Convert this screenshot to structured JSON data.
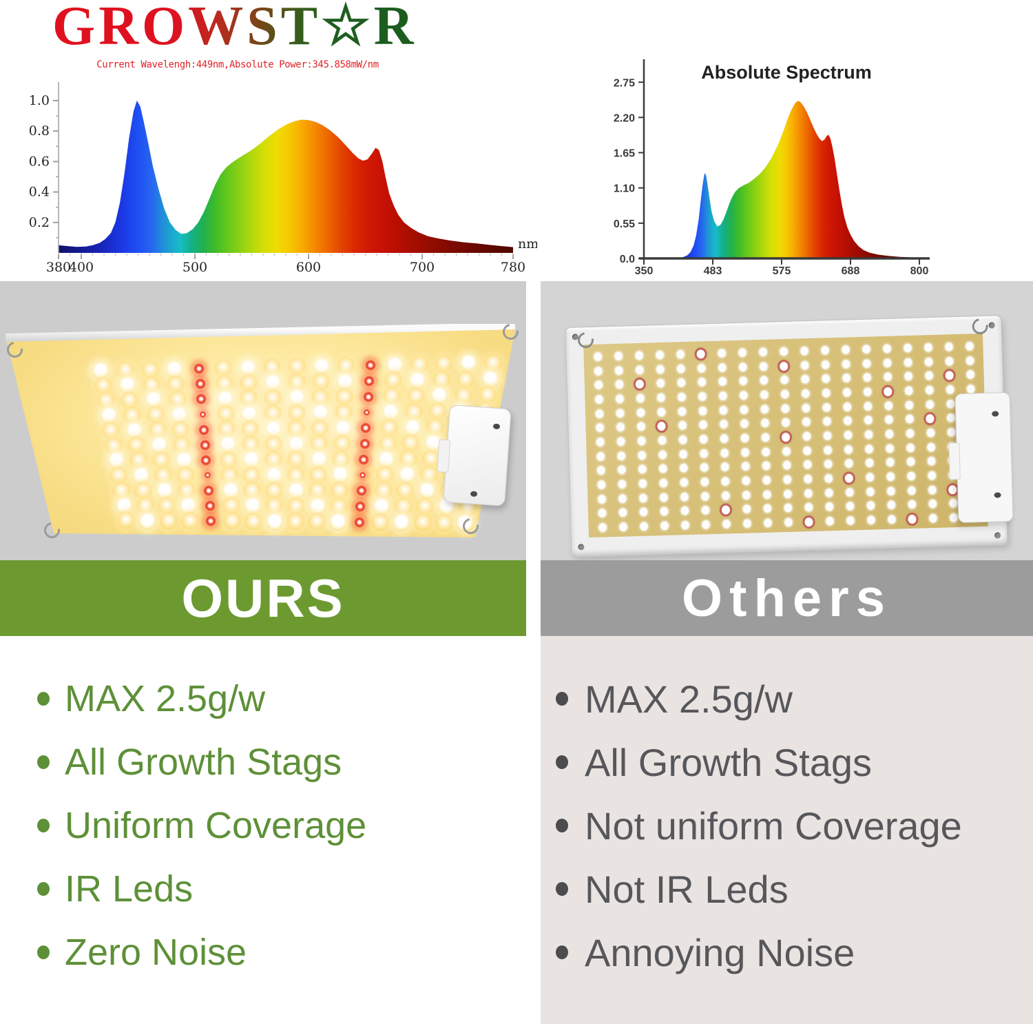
{
  "logo": {
    "text": "GROWST☆R"
  },
  "colors": {
    "logo_red": "#e2101e",
    "logo_green": "#1b5c1f",
    "chart_title_red": "#e12328",
    "banner_green": "#6d9a30",
    "banner_gray": "#9c9c9c",
    "ours_list_green": "#5e9038",
    "others_list_gray": "#57575b",
    "others_list_bg": "#e9e4e2",
    "photo_bg_left": "#cccccc",
    "photo_bg_right": "#d4d4d4"
  },
  "chart_data": [
    {
      "type": "area",
      "title": "Current Wavelengh:449nm,Absolute Power:345.858mW/nm",
      "x_unit": "nm",
      "x_scale": "linear",
      "xlim": [
        380,
        780
      ],
      "ylim": [
        0,
        1.08
      ],
      "x_ticks": [
        {
          "nm": 380,
          "label": "380"
        },
        {
          "nm": 400,
          "label": "400"
        },
        {
          "nm": 500,
          "label": "500"
        },
        {
          "nm": 600,
          "label": "600"
        },
        {
          "nm": 700,
          "label": "700"
        },
        {
          "nm": 780,
          "label": "780"
        }
      ],
      "y_ticks": [
        {
          "v": 0.2,
          "label": "0.2"
        },
        {
          "v": 0.4,
          "label": "0.4"
        },
        {
          "v": 0.6,
          "label": "0.6"
        },
        {
          "v": 0.8,
          "label": "0.8"
        },
        {
          "v": 1.0,
          "label": "1.0"
        }
      ],
      "points": [
        [
          380,
          0.05
        ],
        [
          388,
          0.045
        ],
        [
          396,
          0.04
        ],
        [
          404,
          0.042
        ],
        [
          410,
          0.05
        ],
        [
          416,
          0.065
        ],
        [
          421,
          0.09
        ],
        [
          426,
          0.13
        ],
        [
          430,
          0.2
        ],
        [
          434,
          0.33
        ],
        [
          438,
          0.52
        ],
        [
          442,
          0.75
        ],
        [
          446,
          0.93
        ],
        [
          449,
          1.0
        ],
        [
          452,
          0.96
        ],
        [
          455,
          0.86
        ],
        [
          459,
          0.72
        ],
        [
          463,
          0.57
        ],
        [
          468,
          0.42
        ],
        [
          473,
          0.29
        ],
        [
          478,
          0.2
        ],
        [
          483,
          0.15
        ],
        [
          488,
          0.125
        ],
        [
          493,
          0.13
        ],
        [
          498,
          0.155
        ],
        [
          503,
          0.2
        ],
        [
          508,
          0.27
        ],
        [
          513,
          0.36
        ],
        [
          518,
          0.45
        ],
        [
          523,
          0.52
        ],
        [
          528,
          0.565
        ],
        [
          534,
          0.6
        ],
        [
          541,
          0.635
        ],
        [
          549,
          0.67
        ],
        [
          557,
          0.715
        ],
        [
          565,
          0.765
        ],
        [
          573,
          0.81
        ],
        [
          581,
          0.845
        ],
        [
          588,
          0.865
        ],
        [
          594,
          0.875
        ],
        [
          600,
          0.872
        ],
        [
          606,
          0.86
        ],
        [
          612,
          0.84
        ],
        [
          619,
          0.805
        ],
        [
          626,
          0.76
        ],
        [
          633,
          0.705
        ],
        [
          639,
          0.655
        ],
        [
          644,
          0.62
        ],
        [
          648,
          0.605
        ],
        [
          652,
          0.615
        ],
        [
          656,
          0.655
        ],
        [
          659,
          0.69
        ],
        [
          662,
          0.675
        ],
        [
          665,
          0.6
        ],
        [
          668,
          0.49
        ],
        [
          671,
          0.39
        ],
        [
          675,
          0.31
        ],
        [
          679,
          0.25
        ],
        [
          684,
          0.2
        ],
        [
          690,
          0.165
        ],
        [
          697,
          0.135
        ],
        [
          705,
          0.11
        ],
        [
          714,
          0.095
        ],
        [
          724,
          0.082
        ],
        [
          736,
          0.07
        ],
        [
          748,
          0.062
        ],
        [
          760,
          0.052
        ],
        [
          770,
          0.045
        ],
        [
          780,
          0.038
        ]
      ]
    },
    {
      "type": "area",
      "title": "Absolute Spectrum",
      "x_scale": "even-ticks",
      "xlim": [
        350,
        800
      ],
      "ylim": [
        0,
        2.75
      ],
      "x_ticks": [
        {
          "nm": 350,
          "label": "350"
        },
        {
          "nm": 483,
          "label": "483"
        },
        {
          "nm": 575,
          "label": "575"
        },
        {
          "nm": 688,
          "label": "688"
        },
        {
          "nm": 800,
          "label": "800"
        }
      ],
      "y_ticks": [
        {
          "v": 0.0,
          "label": "0.0"
        },
        {
          "v": 0.55,
          "label": "0.55"
        },
        {
          "v": 1.1,
          "label": "1.10"
        },
        {
          "v": 1.65,
          "label": "1.65"
        },
        {
          "v": 2.2,
          "label": "2.20"
        },
        {
          "v": 2.75,
          "label": "2.75"
        }
      ],
      "points": [
        [
          350,
          0.005
        ],
        [
          415,
          0.01
        ],
        [
          426,
          0.02
        ],
        [
          434,
          0.05
        ],
        [
          440,
          0.1
        ],
        [
          446,
          0.2
        ],
        [
          451,
          0.36
        ],
        [
          456,
          0.62
        ],
        [
          460,
          0.92
        ],
        [
          464,
          1.18
        ],
        [
          467,
          1.33
        ],
        [
          470,
          1.3
        ],
        [
          473,
          1.15
        ],
        [
          477,
          0.92
        ],
        [
          481,
          0.72
        ],
        [
          485,
          0.58
        ],
        [
          489,
          0.5
        ],
        [
          493,
          0.52
        ],
        [
          497,
          0.6
        ],
        [
          501,
          0.72
        ],
        [
          505,
          0.85
        ],
        [
          509,
          0.96
        ],
        [
          513,
          1.04
        ],
        [
          518,
          1.1
        ],
        [
          524,
          1.14
        ],
        [
          531,
          1.18
        ],
        [
          538,
          1.24
        ],
        [
          546,
          1.32
        ],
        [
          554,
          1.43
        ],
        [
          562,
          1.58
        ],
        [
          570,
          1.77
        ],
        [
          578,
          1.99
        ],
        [
          585,
          2.18
        ],
        [
          591,
          2.32
        ],
        [
          597,
          2.42
        ],
        [
          602,
          2.46
        ],
        [
          607,
          2.43
        ],
        [
          612,
          2.36
        ],
        [
          617,
          2.27
        ],
        [
          622,
          2.16
        ],
        [
          627,
          2.05
        ],
        [
          632,
          1.95
        ],
        [
          637,
          1.87
        ],
        [
          641,
          1.83
        ],
        [
          645,
          1.85
        ],
        [
          649,
          1.91
        ],
        [
          652,
          1.93
        ],
        [
          655,
          1.87
        ],
        [
          658,
          1.75
        ],
        [
          662,
          1.55
        ],
        [
          666,
          1.3
        ],
        [
          670,
          1.05
        ],
        [
          674,
          0.83
        ],
        [
          678,
          0.64
        ],
        [
          683,
          0.48
        ],
        [
          688,
          0.37
        ],
        [
          694,
          0.27
        ],
        [
          701,
          0.19
        ],
        [
          709,
          0.13
        ],
        [
          719,
          0.09
        ],
        [
          732,
          0.06
        ],
        [
          748,
          0.04
        ],
        [
          768,
          0.025
        ],
        [
          800,
          0.012
        ]
      ]
    }
  ],
  "spectrum_gradient": [
    [
      380,
      "#121268"
    ],
    [
      415,
      "#1722b4"
    ],
    [
      437,
      "#1c3ae6"
    ],
    [
      450,
      "#1e4ff2"
    ],
    [
      462,
      "#2766f0"
    ],
    [
      475,
      "#1e9ad2"
    ],
    [
      487,
      "#16bcc8"
    ],
    [
      497,
      "#16b088"
    ],
    [
      507,
      "#1fb052"
    ],
    [
      518,
      "#3fbc28"
    ],
    [
      532,
      "#72ca1a"
    ],
    [
      547,
      "#a6d60e"
    ],
    [
      560,
      "#d2de06"
    ],
    [
      572,
      "#eedc02"
    ],
    [
      583,
      "#f6c903"
    ],
    [
      594,
      "#f8ab01"
    ],
    [
      605,
      "#f48b00"
    ],
    [
      616,
      "#ee6a00"
    ],
    [
      628,
      "#e44700"
    ],
    [
      640,
      "#da2a00"
    ],
    [
      652,
      "#d01a02"
    ],
    [
      664,
      "#c81206"
    ],
    [
      676,
      "#bc0e02"
    ],
    [
      690,
      "#a80e00"
    ],
    [
      708,
      "#920c00"
    ],
    [
      728,
      "#7c0a00"
    ],
    [
      750,
      "#660800"
    ],
    [
      780,
      "#500700"
    ]
  ],
  "panels": {
    "ours": {
      "rows": 11,
      "cols": 17,
      "red_cols": [
        4,
        11
      ]
    },
    "others": {
      "rows": 13,
      "cols": 19,
      "red_spots": [
        [
          0,
          5
        ],
        [
          1,
          9
        ],
        [
          2,
          2
        ],
        [
          2,
          17
        ],
        [
          3,
          14
        ],
        [
          5,
          3
        ],
        [
          5,
          16
        ],
        [
          6,
          9
        ],
        [
          9,
          12
        ],
        [
          10,
          17
        ],
        [
          11,
          6
        ],
        [
          12,
          10
        ],
        [
          12,
          15
        ]
      ]
    }
  },
  "comparison": {
    "ours": {
      "banner": "OURS",
      "items": [
        "MAX 2.5g/w",
        "All Growth Stags",
        "Uniform Coverage",
        "IR Leds",
        "Zero Noise"
      ]
    },
    "others": {
      "banner": "Others",
      "items": [
        "MAX 2.5g/w",
        "All Growth Stags",
        "Not uniform Coverage",
        "Not IR Leds",
        "Annoying Noise"
      ]
    }
  }
}
